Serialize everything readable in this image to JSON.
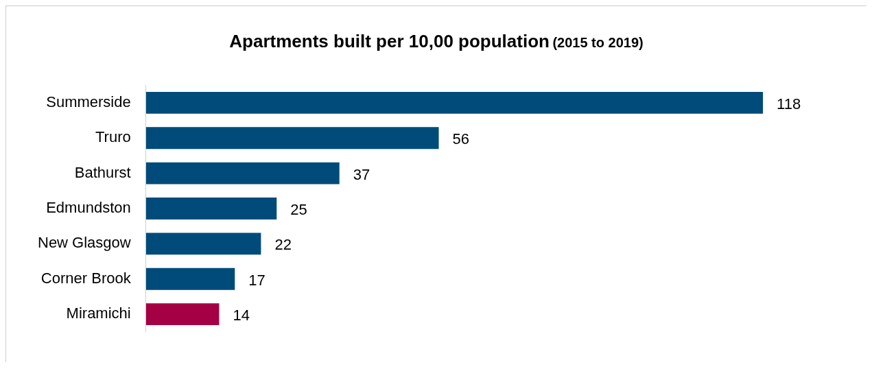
{
  "chart_data": {
    "type": "bar",
    "orientation": "horizontal",
    "title": "Apartments built per 10,00 population",
    "subtitle": "(2015 to 2019)",
    "categories": [
      "Summerside",
      "Truro",
      "Bathurst",
      "Edmundston",
      "New Glasgow",
      "Corner Brook",
      "Miramichi"
    ],
    "values": [
      118,
      56,
      37,
      25,
      22,
      17,
      14
    ],
    "colors": [
      "#004b7a",
      "#004b7a",
      "#004b7a",
      "#004b7a",
      "#004b7a",
      "#004b7a",
      "#a50044"
    ],
    "data_labels": true
  }
}
